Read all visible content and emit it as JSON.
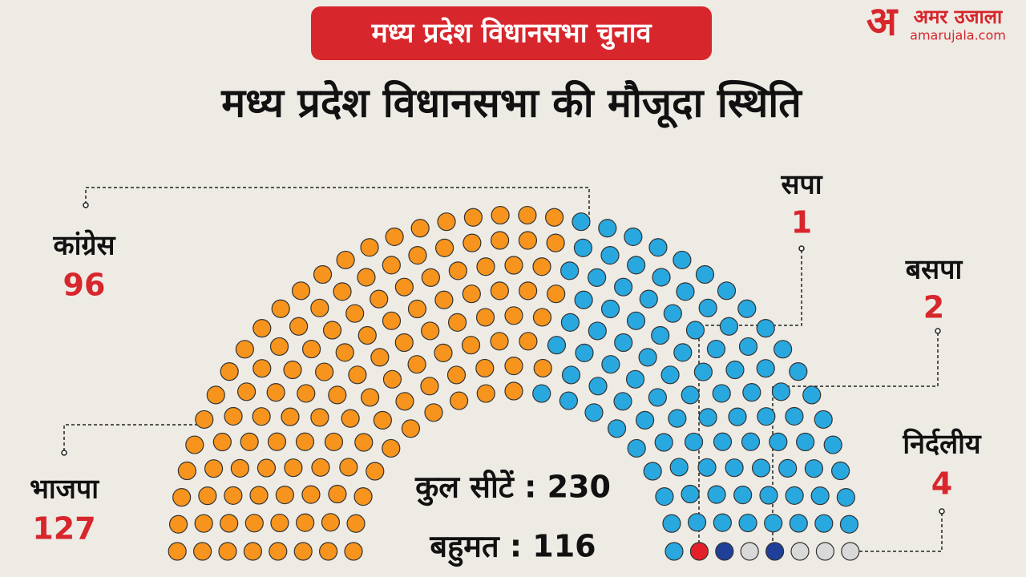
{
  "chart_data": {
    "type": "parliament",
    "banner": "मध्य प्रदेश विधानसभा चुनाव",
    "title": "मध्य प्रदेश विधानसभा की मौजूदा स्थिति",
    "logo": {
      "mark": "अ",
      "name": "अमर उजाला",
      "site": "amarujala.com"
    },
    "total_seats": "कुल सीटें : 230",
    "majority": "बहुमत : 116",
    "series": [
      {
        "name": "भाजपा",
        "color": "#f7941d",
        "values": [
          127
        ]
      },
      {
        "name": "कांग्रेस",
        "color": "#29a8e0",
        "values": [
          96
        ]
      },
      {
        "name": "सपा",
        "color": "#e3202a",
        "values": [
          1
        ]
      },
      {
        "name": "बसपा",
        "color": "#1f3f99",
        "values": [
          2
        ]
      },
      {
        "name": "निर्दलीय",
        "color": "#d9d9d9",
        "values": [
          4
        ]
      }
    ]
  }
}
